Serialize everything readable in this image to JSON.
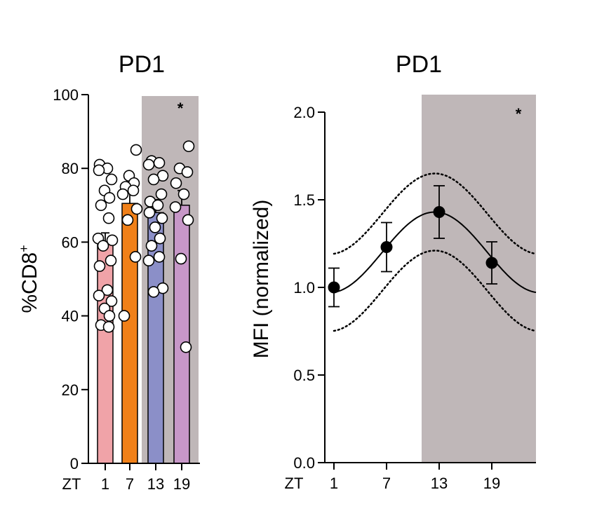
{
  "chart_data": [
    {
      "type": "bar",
      "title": "PD1",
      "ylabel": "%CD8+",
      "ylabel_main": "%CD8",
      "ylabel_sup": "+",
      "xlabel": "ZT",
      "ylim": [
        0,
        100
      ],
      "yticks": [
        0,
        20,
        40,
        60,
        80,
        100
      ],
      "categories": [
        "1",
        "7",
        "13",
        "19"
      ],
      "values": [
        59.5,
        70.5,
        68,
        70
      ],
      "sem": [
        3,
        4,
        3.5,
        4
      ],
      "colors": [
        "#f0a3a8",
        "#f08019",
        "#8b8fc8",
        "#c797c8"
      ],
      "points": [
        [
          81,
          80,
          79.5,
          77,
          74,
          72,
          70,
          66.5,
          61,
          60.5,
          59,
          55,
          53.5,
          47,
          45.5,
          44,
          42,
          40,
          37.5,
          37
        ],
        [
          85,
          78,
          76,
          75,
          74,
          73,
          69,
          66,
          56,
          40
        ],
        [
          82,
          81.5,
          81,
          78,
          77,
          73,
          71,
          70,
          68,
          66.5,
          64,
          61,
          59,
          56,
          55,
          47.5,
          46.5
        ],
        [
          86,
          80,
          79,
          76,
          73,
          69.5,
          66,
          55.5,
          31.5
        ]
      ],
      "shaded_categories": [
        "13",
        "19"
      ],
      "annotation": "*"
    },
    {
      "type": "line",
      "title": "PD1",
      "ylabel": "MFI (normalized)",
      "xlabel": "ZT",
      "xlim": [
        0,
        24
      ],
      "ylim": [
        0,
        2.0
      ],
      "yticks": [
        "0.0",
        "0.5",
        "1.0",
        "1.5",
        "2.0"
      ],
      "xticks": [
        "1",
        "7",
        "13",
        "19"
      ],
      "x": [
        1,
        7,
        13,
        19
      ],
      "y": [
        1.0,
        1.23,
        1.43,
        1.14
      ],
      "error": [
        0.11,
        0.14,
        0.15,
        0.12
      ],
      "fit": {
        "mesor": 1.2,
        "amplitude": 0.23,
        "peak_zt": 12.5,
        "band": 0.22
      },
      "shaded_x": [
        11,
        24
      ],
      "annotation": "*"
    }
  ]
}
